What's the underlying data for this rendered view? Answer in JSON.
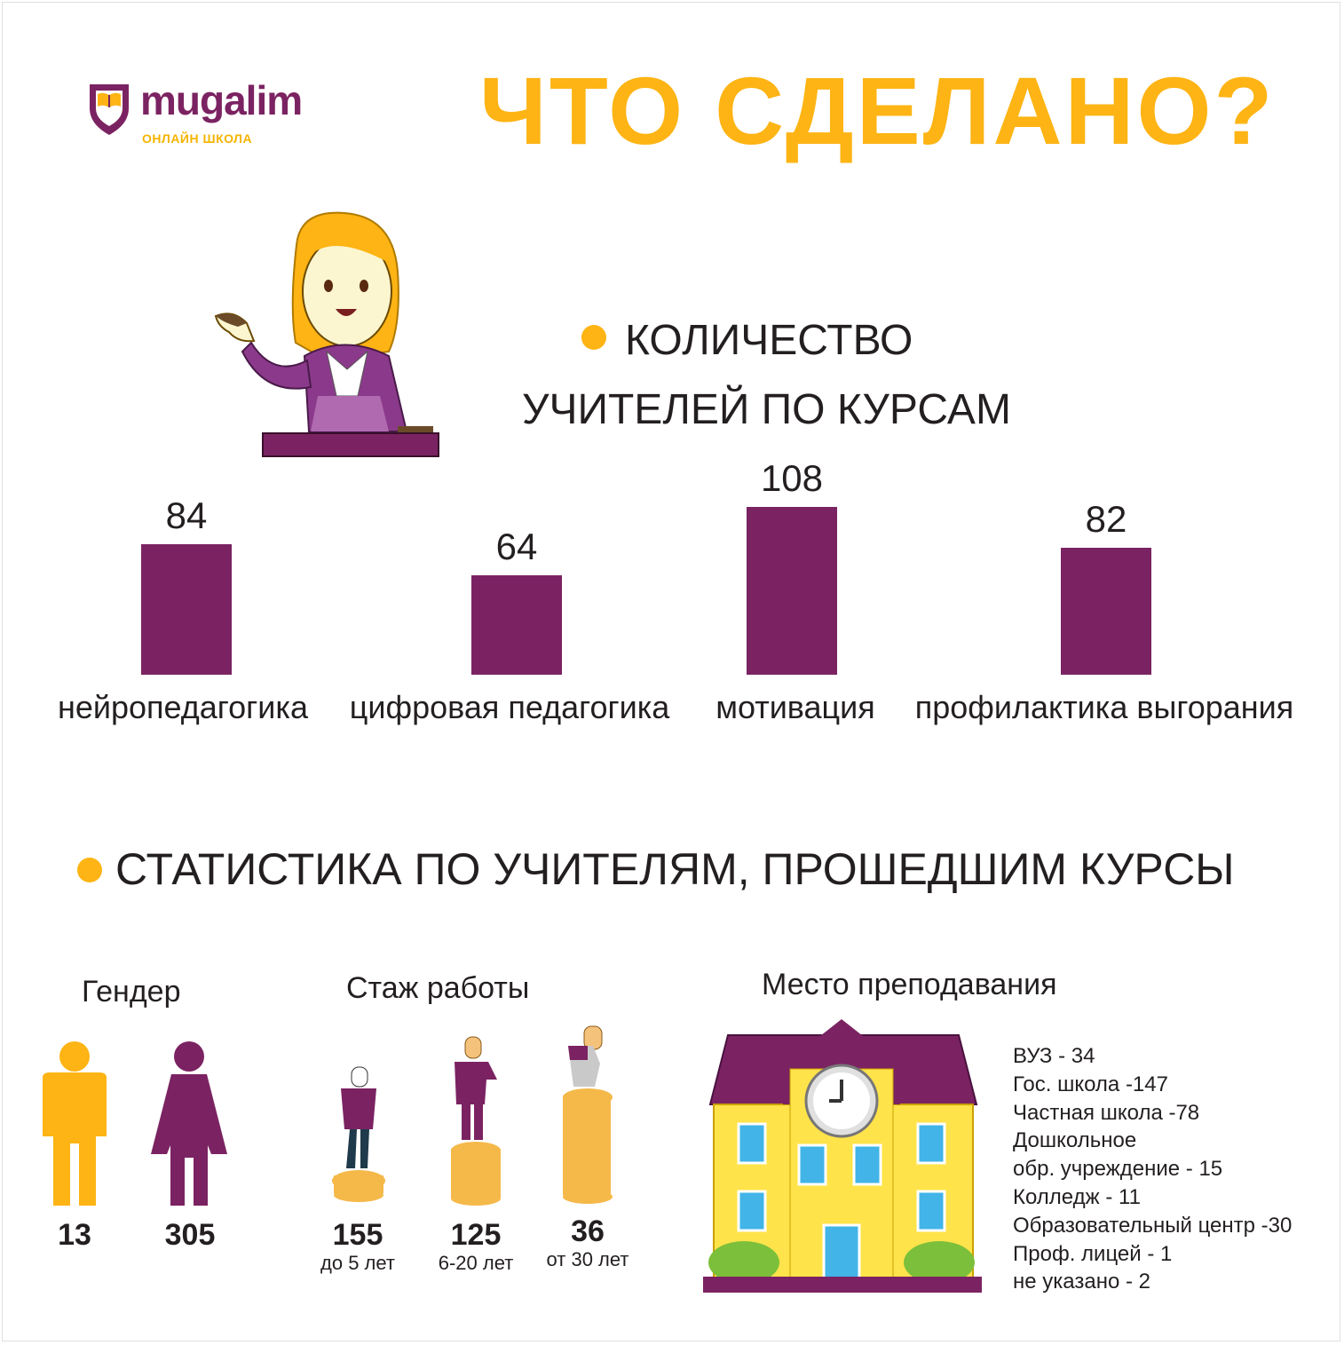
{
  "logo": {
    "name": "mugalim",
    "subtitle": "ОНЛАЙН ШКОЛА"
  },
  "title": "ЧТО СДЕЛАНО?",
  "section_courses": {
    "line1": "КОЛИЧЕСТВО",
    "line2": "УЧИТЕЛЕЙ ПО КУРСАМ"
  },
  "section_stats": {
    "title": "СТАТИСТИКА ПО УЧИТЕЛЯМ, ПРОШЕДШИМ КУРСЫ"
  },
  "gender": {
    "title": "Гендер",
    "male": "13",
    "female": "305"
  },
  "experience": {
    "title": "Стаж работы",
    "groups": [
      {
        "value": "155",
        "label": "до 5 лет"
      },
      {
        "value": "125",
        "label": "6-20 лет"
      },
      {
        "value": "36",
        "label": "от 30 лет"
      }
    ]
  },
  "place": {
    "title": "Место преподавания",
    "items": [
      "ВУЗ - 34",
      "Гос. школа -147",
      "Частная школа -78",
      "Дошкольное",
      "обр. учреждение - 15",
      "Колледж - 11",
      "Образовательный центр -30",
      "Проф. лицей - 1",
      "не указано - 2"
    ]
  },
  "colors": {
    "purple": "#7b2362",
    "orange": "#fdb414",
    "text": "#231f20"
  },
  "chart_data": {
    "type": "bar",
    "categories": [
      "нейропедагогика",
      "цифровая педагогика",
      "мотивация",
      "профилактика выгорания"
    ],
    "values": [
      84,
      64,
      108,
      82
    ],
    "value_labels": [
      "84",
      "64",
      "108",
      "82"
    ],
    "title": "",
    "xlabel": "",
    "ylabel": "",
    "grid": false
  }
}
